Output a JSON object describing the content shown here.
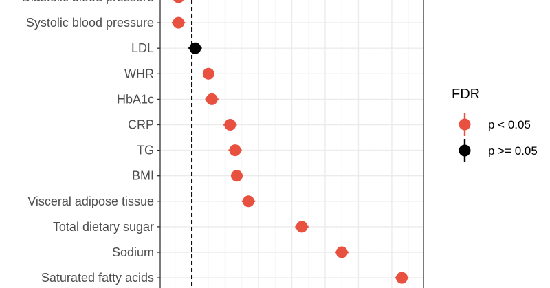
{
  "chart_data": {
    "type": "scatter",
    "subtype": "forest-plot",
    "title": "",
    "xlabel": "",
    "ylabel": "",
    "reference_line": "dashed vertical line at estimate 0",
    "grid": "on",
    "legend_placement": "right",
    "categories": [
      "Diastolic blood pressure",
      "Systolic blood pressure",
      "LDL",
      "WHR",
      "HbA1c",
      "CRP",
      "TG",
      "BMI",
      "Visceral adipose tissue",
      "Total dietary sugar",
      "Sodium",
      "Saturated fatty acids"
    ],
    "points": [
      {
        "label": "Diastolic blood pressure",
        "estimate": -0.04,
        "ci_low": -0.06,
        "ci_high": -0.02,
        "group": "p < 0.05"
      },
      {
        "label": "Systolic blood pressure",
        "estimate": -0.04,
        "ci_low": -0.06,
        "ci_high": -0.02,
        "group": "p < 0.05"
      },
      {
        "label": "LDL",
        "estimate": 0.01,
        "ci_low": -0.01,
        "ci_high": 0.03,
        "group": "p >= 0.05"
      },
      {
        "label": "WHR",
        "estimate": 0.05,
        "ci_low": 0.035,
        "ci_high": 0.065,
        "group": "p < 0.05"
      },
      {
        "label": "HbA1c",
        "estimate": 0.06,
        "ci_low": 0.04,
        "ci_high": 0.08,
        "group": "p < 0.05"
      },
      {
        "label": "CRP",
        "estimate": 0.115,
        "ci_low": 0.095,
        "ci_high": 0.135,
        "group": "p < 0.05"
      },
      {
        "label": "TG",
        "estimate": 0.13,
        "ci_low": 0.11,
        "ci_high": 0.15,
        "group": "p < 0.05"
      },
      {
        "label": "BMI",
        "estimate": 0.135,
        "ci_low": 0.12,
        "ci_high": 0.15,
        "group": "p < 0.05"
      },
      {
        "label": "Visceral adipose tissue",
        "estimate": 0.17,
        "ci_low": 0.15,
        "ci_high": 0.19,
        "group": "p < 0.05"
      },
      {
        "label": "Total dietary sugar",
        "estimate": 0.33,
        "ci_low": 0.31,
        "ci_high": 0.35,
        "group": "p < 0.05"
      },
      {
        "label": "Sodium",
        "estimate": 0.45,
        "ci_low": 0.43,
        "ci_high": 0.47,
        "group": "p < 0.05"
      },
      {
        "label": "Saturated fatty acids",
        "estimate": 0.63,
        "ci_low": 0.61,
        "ci_high": 0.65,
        "group": "p < 0.05"
      }
    ],
    "xlim": [
      -0.095,
      0.695
    ],
    "legend": {
      "title": "FDR",
      "entries": [
        {
          "label": "p < 0.05",
          "color": "#e8503f"
        },
        {
          "label": "p >= 0.05",
          "color": "#000000"
        }
      ]
    },
    "colors": {
      "significant": "#e8503f",
      "nonsignificant": "#000000",
      "grid_major": "#ebebeb",
      "grid_minor": "#f5f5f5",
      "axis_text": "#4d4d4d"
    }
  }
}
